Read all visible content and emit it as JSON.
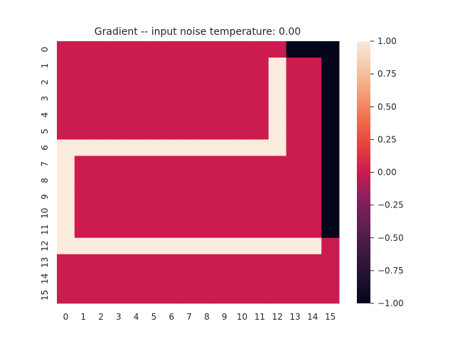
{
  "chart_data": {
    "type": "heatmap",
    "title": "Gradient -- input noise temperature: 0.00",
    "xlabel": "",
    "ylabel": "",
    "x_tick_labels": [
      "0",
      "1",
      "2",
      "3",
      "4",
      "5",
      "6",
      "7",
      "8",
      "9",
      "10",
      "11",
      "12",
      "13",
      "14",
      "15"
    ],
    "y_tick_labels": [
      "0",
      "1",
      "2",
      "3",
      "4",
      "5",
      "6",
      "7",
      "8",
      "9",
      "10",
      "11",
      "12",
      "13",
      "14",
      "15"
    ],
    "vmin": -1.0,
    "vmax": 1.0,
    "colormap": "rocket",
    "colorbar_ticks": [
      "1.00",
      "0.75",
      "0.50",
      "0.25",
      "0.00",
      "−0.25",
      "−0.50",
      "−0.75",
      "−1.00"
    ],
    "colorbar_values": [
      1.0,
      0.75,
      0.5,
      0.25,
      0.0,
      -0.25,
      -0.5,
      -0.75,
      -1.0
    ],
    "values": [
      [
        0,
        0,
        0,
        0,
        0,
        0,
        0,
        0,
        0,
        0,
        0,
        0,
        0,
        -1,
        -1,
        -1
      ],
      [
        0,
        0,
        0,
        0,
        0,
        0,
        0,
        0,
        0,
        0,
        0,
        0,
        1,
        0,
        0,
        -1
      ],
      [
        0,
        0,
        0,
        0,
        0,
        0,
        0,
        0,
        0,
        0,
        0,
        0,
        1,
        0,
        0,
        -1
      ],
      [
        0,
        0,
        0,
        0,
        0,
        0,
        0,
        0,
        0,
        0,
        0,
        0,
        1,
        0,
        0,
        -1
      ],
      [
        0,
        0,
        0,
        0,
        0,
        0,
        0,
        0,
        0,
        0,
        0,
        0,
        1,
        0,
        0,
        -1
      ],
      [
        0,
        0,
        0,
        0,
        0,
        0,
        0,
        0,
        0,
        0,
        0,
        0,
        1,
        0,
        0,
        -1
      ],
      [
        1,
        1,
        1,
        1,
        1,
        1,
        1,
        1,
        1,
        1,
        1,
        1,
        1,
        0,
        0,
        -1
      ],
      [
        1,
        0,
        0,
        0,
        0,
        0,
        0,
        0,
        0,
        0,
        0,
        0,
        0,
        0,
        0,
        -1
      ],
      [
        1,
        0,
        0,
        0,
        0,
        0,
        0,
        0,
        0,
        0,
        0,
        0,
        0,
        0,
        0,
        -1
      ],
      [
        1,
        0,
        0,
        0,
        0,
        0,
        0,
        0,
        0,
        0,
        0,
        0,
        0,
        0,
        0,
        -1
      ],
      [
        1,
        0,
        0,
        0,
        0,
        0,
        0,
        0,
        0,
        0,
        0,
        0,
        0,
        0,
        0,
        -1
      ],
      [
        1,
        0,
        0,
        0,
        0,
        0,
        0,
        0,
        0,
        0,
        0,
        0,
        0,
        0,
        0,
        -1
      ],
      [
        1,
        1,
        1,
        1,
        1,
        1,
        1,
        1,
        1,
        1,
        1,
        1,
        1,
        1,
        1,
        0
      ],
      [
        0,
        0,
        0,
        0,
        0,
        0,
        0,
        0,
        0,
        0,
        0,
        0,
        0,
        0,
        0,
        0
      ],
      [
        0,
        0,
        0,
        0,
        0,
        0,
        0,
        0,
        0,
        0,
        0,
        0,
        0,
        0,
        0,
        0
      ],
      [
        0,
        0,
        0,
        0,
        0,
        0,
        0,
        0,
        0,
        0,
        0,
        0,
        0,
        0,
        0,
        0
      ]
    ],
    "colors": {
      "positive": "#faebdd",
      "zero": "#cb1b4f",
      "negative": "#03051a"
    },
    "grid": false,
    "legend": "colorbar-right"
  }
}
